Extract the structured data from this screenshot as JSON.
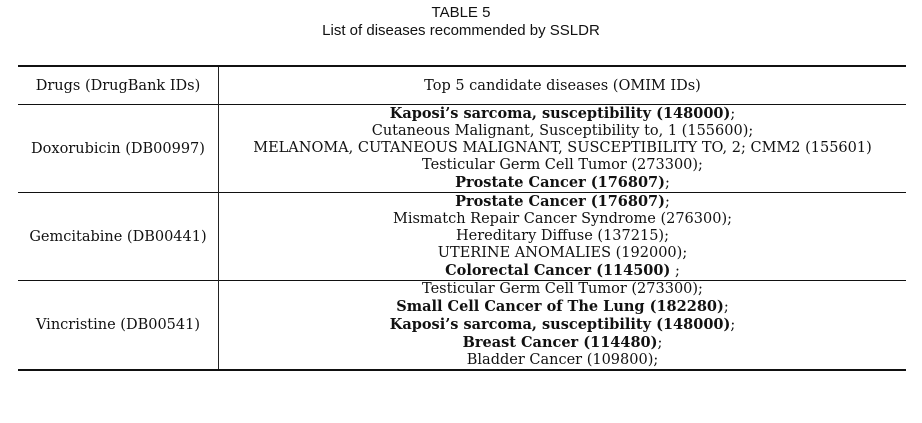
{
  "caption": {
    "label": "TABLE 5",
    "title": "List of diseases recommended by SSLDR"
  },
  "table": {
    "headers": {
      "drug": "Drugs (DrugBank IDs)",
      "diseases": "Top 5 candidate diseases (OMIM IDs)"
    },
    "rows": [
      {
        "drug": "Doxorubicin (DB00997)",
        "diseases": [
          {
            "text": "Kaposi’s sarcoma, susceptibility (148000)",
            "suffix": ";",
            "bold": true
          },
          {
            "text": "Cutaneous Malignant, Susceptibility to, 1 (155600);",
            "suffix": "",
            "bold": false
          },
          {
            "text": "MELANOMA, CUTANEOUS MALIGNANT, SUSCEPTIBILITY TO, 2; CMM2 (155601)",
            "suffix": "",
            "bold": false
          },
          {
            "text": "Testicular Germ Cell Tumor (273300);",
            "suffix": "",
            "bold": false
          },
          {
            "text": "Prostate Cancer (176807)",
            "suffix": ";",
            "bold": true
          }
        ]
      },
      {
        "drug": "Gemcitabine (DB00441)",
        "diseases": [
          {
            "text": "Prostate Cancer (176807)",
            "suffix": ";",
            "bold": true
          },
          {
            "text": "Mismatch Repair Cancer Syndrome (276300);",
            "suffix": "",
            "bold": false
          },
          {
            "text": "Hereditary Diffuse (137215);",
            "suffix": "",
            "bold": false
          },
          {
            "text": "UTERINE ANOMALIES (192000);",
            "suffix": "",
            "bold": false
          },
          {
            "text": "Colorectal Cancer (114500)",
            "suffix": " ;",
            "bold": true
          }
        ]
      },
      {
        "drug": "Vincristine (DB00541)",
        "diseases": [
          {
            "text": "Testicular Germ Cell Tumor (273300);",
            "suffix": "",
            "bold": false
          },
          {
            "text": "Small Cell Cancer of The Lung (182280)",
            "suffix": ";",
            "bold": true
          },
          {
            "text": "Kaposi’s sarcoma, susceptibility (148000)",
            "suffix": ";",
            "bold": true
          },
          {
            "text": "Breast Cancer (114480)",
            "suffix": ";",
            "bold": true
          },
          {
            "text": "Bladder Cancer (109800);",
            "suffix": "",
            "bold": false
          }
        ]
      }
    ]
  }
}
